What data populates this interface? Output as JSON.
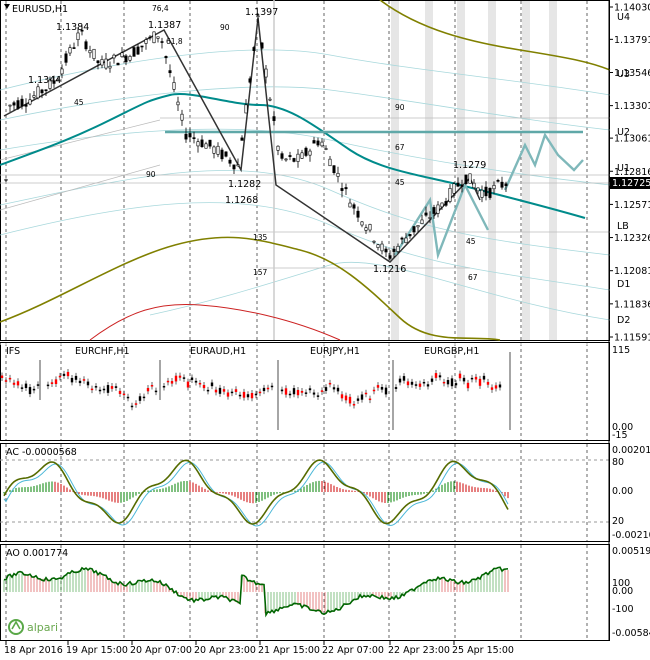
{
  "main": {
    "title": "EURUSD,H1",
    "price_current": "1.12725",
    "price_ticks": [
      "1.14030",
      "1.13791",
      "1.13546",
      "1.13301",
      "1.13061",
      "1.12816",
      "1.12571",
      "1.12326",
      "1.12081",
      "1.11836",
      "1.11591"
    ],
    "levels": [
      "U4",
      "U3",
      "U2",
      "U1",
      "LB",
      "D1",
      "D2"
    ],
    "swing_labels": [
      "1.1384",
      "1.1387",
      "1.1397",
      "1.1344",
      "1.1282",
      "1.1268",
      "1.1279",
      "1.1216"
    ],
    "fib_labels": [
      "76,4",
      "61,8",
      "90",
      "45",
      "90",
      "90",
      "67",
      "45",
      "45",
      "135",
      "157",
      "67"
    ]
  },
  "ifs": {
    "title": "IFS",
    "pairs": [
      "EURCHF,H1",
      "EURAUD,H1",
      "EURJPY,H1",
      "EURGBP,H1"
    ],
    "ticks": [
      "115",
      "0.00",
      "-15"
    ]
  },
  "ac": {
    "title": "AC -0.0000568",
    "ticks": [
      "0.002015",
      "80",
      "0.00",
      "20",
      "-0.002106"
    ]
  },
  "ao": {
    "title": "AO 0.001774",
    "ticks": [
      "0.00519",
      "100",
      "0.00",
      "-100",
      "-0.00584"
    ]
  },
  "time_axis": [
    "18 Apr 2016",
    "19 Apr 15:00",
    "20 Apr 07:00",
    "20 Apr 23:00",
    "21 Apr 15:00",
    "22 Apr 07:00",
    "22 Apr 23:00",
    "25 Apr 15:00"
  ],
  "watermark": "alpari",
  "colors": {
    "bull": "#000000",
    "bear": "#ff0000",
    "teal": "#008b8b",
    "olive": "#808000",
    "light_teal": "#a8d8dc",
    "cur_price_bg": "#000000"
  }
}
